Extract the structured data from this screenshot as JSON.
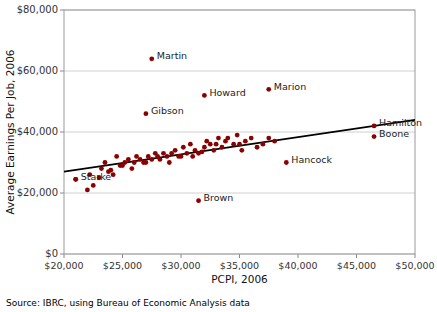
{
  "chart_data": {
    "type": "scatter",
    "x": [
      21000,
      22000,
      22200,
      22500,
      23000,
      23200,
      23500,
      23800,
      24000,
      24200,
      24500,
      24800,
      25000,
      25200,
      25500,
      25800,
      26000,
      26200,
      26500,
      26800,
      27000,
      27200,
      27500,
      27800,
      28000,
      28200,
      28500,
      28800,
      29000,
      29200,
      29500,
      29800,
      30000,
      30200,
      30500,
      30800,
      31000,
      31200,
      31500,
      31800,
      32000,
      32200,
      32500,
      32800,
      33000,
      33200,
      33500,
      33800,
      34000,
      34500,
      34800,
      35000,
      35200,
      35500,
      36000,
      36500,
      37000,
      37500,
      38000
    ],
    "values": [
      24500,
      21000,
      26000,
      22500,
      25000,
      28000,
      30000,
      27000,
      27500,
      26000,
      32000,
      29000,
      29000,
      30000,
      31000,
      28000,
      30000,
      32000,
      31000,
      30000,
      30000,
      32000,
      31000,
      33000,
      32000,
      31000,
      33000,
      32000,
      30000,
      33000,
      34000,
      32000,
      32000,
      35000,
      33000,
      36000,
      32000,
      34000,
      33000,
      33500,
      35000,
      37000,
      36000,
      34000,
      36000,
      38000,
      35000,
      37000,
      38000,
      36000,
      39000,
      36000,
      34000,
      37000,
      38000,
      35000,
      36000,
      38000,
      37000
    ],
    "color": "#8B0000",
    "labeled_points": [
      {
        "label": "Martin",
        "x": 27500,
        "y": 64000
      },
      {
        "label": "Howard",
        "x": 32000,
        "y": 52000
      },
      {
        "label": "Marion",
        "x": 37500,
        "y": 54000
      },
      {
        "label": "Gibson",
        "x": 27000,
        "y": 46000
      },
      {
        "label": "Hamilton",
        "x": 46500,
        "y": 42000
      },
      {
        "label": "Boone",
        "x": 46500,
        "y": 38500
      },
      {
        "label": "Hancock",
        "x": 39000,
        "y": 30000
      },
      {
        "label": "Brown",
        "x": 31500,
        "y": 17500
      },
      {
        "label": "Starke",
        "x": 21000,
        "y": 24500
      }
    ],
    "trendline": {
      "x": [
        20000,
        50000
      ],
      "y": [
        27000,
        44000
      ],
      "color": "#000000"
    },
    "xlim": [
      20000,
      50000
    ],
    "ylim": [
      0,
      80000
    ],
    "xticks": [
      {
        "value": 20000,
        "label": "$20,000"
      },
      {
        "value": 25000,
        "label": "$25,000"
      },
      {
        "value": 30000,
        "label": "$30,000"
      },
      {
        "value": 35000,
        "label": "$35,000"
      },
      {
        "value": 40000,
        "label": "$40,000"
      },
      {
        "value": 45000,
        "label": "$45,000"
      },
      {
        "value": 50000,
        "label": "$50,000"
      }
    ],
    "yticks": [
      {
        "value": 0,
        "label": "$0"
      },
      {
        "value": 20000,
        "label": "$20,000"
      },
      {
        "value": 40000,
        "label": "$40,000"
      },
      {
        "value": 60000,
        "label": "$60,000"
      },
      {
        "value": 80000,
        "label": "$80,000"
      }
    ],
    "xlabel": "PCPI, 2006",
    "ylabel": "Average Earnings Per Job, 2006",
    "source": "Source: IBRC, using Bureau of Economic Analysis data",
    "grid": "y"
  }
}
